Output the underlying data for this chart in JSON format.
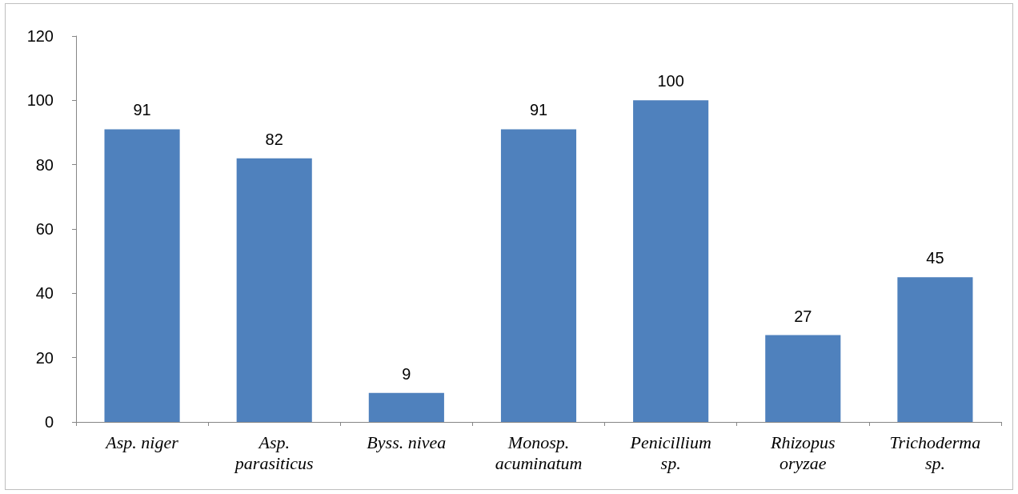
{
  "chart_data": {
    "type": "bar",
    "categories": [
      "Asp. niger",
      "Asp.\nparasiticus",
      "Byss. nivea",
      "Monosp.\nacuminatum",
      "Penicillium\nsp.",
      "Rhizopus\noryzae",
      "Trichoderma\nsp."
    ],
    "values": [
      91,
      82,
      9,
      91,
      100,
      27,
      45
    ],
    "color": "#4f81bd",
    "ylim": [
      0,
      120
    ],
    "yticks": [
      0,
      20,
      40,
      60,
      80,
      100,
      120
    ],
    "grid": false,
    "data_labels": true
  }
}
